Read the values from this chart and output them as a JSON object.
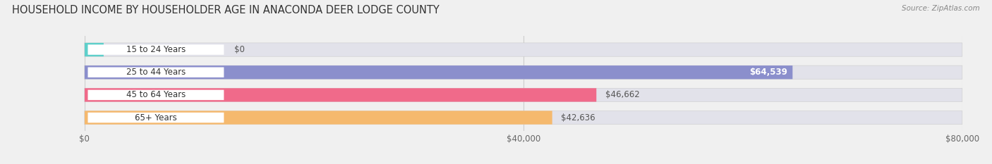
{
  "title": "HOUSEHOLD INCOME BY HOUSEHOLDER AGE IN ANACONDA DEER LODGE COUNTY",
  "source": "Source: ZipAtlas.com",
  "categories": [
    "15 to 24 Years",
    "25 to 44 Years",
    "45 to 64 Years",
    "65+ Years"
  ],
  "values": [
    0,
    64539,
    46662,
    42636
  ],
  "bar_colors": [
    "#5ecfca",
    "#8b8fcc",
    "#f06a8a",
    "#f5b96e"
  ],
  "value_labels": [
    "$0",
    "$64,539",
    "$46,662",
    "$42,636"
  ],
  "value_inside": [
    false,
    true,
    false,
    false
  ],
  "xlim": [
    0,
    80000
  ],
  "xtick_values": [
    0,
    40000,
    80000
  ],
  "xtick_labels": [
    "$0",
    "$40,000",
    "$80,000"
  ],
  "background_color": "#f0f0f0",
  "bar_bg_color": "#e2e2ea",
  "title_fontsize": 10.5,
  "source_fontsize": 7.5,
  "label_fontsize": 8.5,
  "value_fontsize": 8.5,
  "bar_height": 0.6
}
